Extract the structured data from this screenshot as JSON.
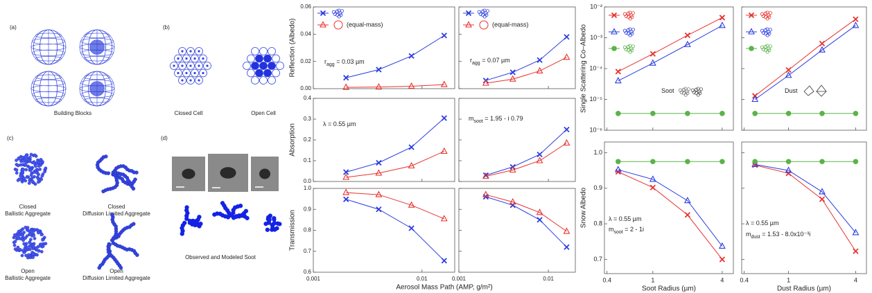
{
  "panels": {
    "a": {
      "label": "(a)",
      "caption": "Building Blocks"
    },
    "b": {
      "label": "(b)",
      "closed": "Closed Cell",
      "open": "Open Cell"
    },
    "c": {
      "label": "(c)",
      "aggregates": [
        [
          "Closed",
          "Ballistic Aggregate"
        ],
        [
          "Closed",
          "Diffusion Limited Aggregate"
        ],
        [
          "Open",
          "Ballistic Aggregate"
        ],
        [
          "Open",
          "Diffusion Limited Aggregate"
        ]
      ]
    },
    "d": {
      "label": "(d)",
      "caption": "Observed and Modeled Soot"
    }
  },
  "chart_data": [
    {
      "type": "line",
      "ylabel": "Reflection (Albedo)",
      "xlog": true,
      "xlim": [
        0.001,
        0.02
      ],
      "xticks": [
        0.001,
        0.01
      ],
      "ylim": [
        0,
        0.06
      ],
      "yticks": [
        {
          "value": 0,
          "label": "0.00"
        },
        0.02,
        0.04,
        0.06
      ],
      "tick_labels": {
        "x": false,
        "y": true
      },
      "legend": true,
      "x": [
        0.002,
        0.004,
        0.008,
        0.016
      ],
      "series": [
        {
          "color": "#2b3de0",
          "marker": "x",
          "values": [
            0.008,
            0.014,
            0.024,
            0.039
          ]
        },
        {
          "name": "(equal-mass)",
          "color": "#e8322e",
          "marker": "triangle",
          "values": [
            0.001,
            0.0012,
            0.0018,
            0.003
          ]
        }
      ],
      "annotations": [
        {
          "text": "r",
          "sub": "agg",
          "after": " = 0.03 µm"
        }
      ]
    },
    {
      "type": "line",
      "xlog": true,
      "xlim": [
        0.001,
        0.02
      ],
      "xticks": [
        0.001,
        0.01
      ],
      "ylim": [
        0,
        0.06
      ],
      "yticks": [
        0,
        0.02,
        0.04,
        0.06
      ],
      "tick_labels": {
        "x": false,
        "y": false
      },
      "legend": true,
      "x": [
        0.002,
        0.004,
        0.008,
        0.016
      ],
      "series": [
        {
          "color": "#2b3de0",
          "marker": "x",
          "values": [
            0.006,
            0.012,
            0.021,
            0.038
          ]
        },
        {
          "name": "(equal-mass)",
          "color": "#e8322e",
          "marker": "triangle",
          "values": [
            0.004,
            0.007,
            0.013,
            0.023
          ]
        }
      ],
      "annotations": [
        {
          "text": "r",
          "sub": "agg",
          "after": " = 0.07 µm"
        }
      ]
    },
    {
      "type": "line",
      "ylabel": "Absorption",
      "xlog": true,
      "xlim": [
        0.001,
        0.02
      ],
      "xticks": [
        0.001,
        0.01
      ],
      "ylim": [
        0,
        0.4
      ],
      "yticks": [
        {
          "value": 0,
          "label": "0.0"
        },
        0.1,
        0.2,
        0.3,
        0.4
      ],
      "tick_labels": {
        "x": false,
        "y": true
      },
      "x": [
        0.002,
        0.004,
        0.008,
        0.016
      ],
      "series": [
        {
          "color": "#2b3de0",
          "marker": "x",
          "values": [
            0.045,
            0.09,
            0.165,
            0.305
          ]
        },
        {
          "color": "#e8322e",
          "marker": "triangle",
          "values": [
            0.02,
            0.04,
            0.075,
            0.145
          ]
        }
      ],
      "annotations": [
        {
          "text": "λ = 0.55 µm"
        }
      ]
    },
    {
      "type": "line",
      "xlog": true,
      "xlim": [
        0.001,
        0.02
      ],
      "xticks": [
        0.001,
        0.01
      ],
      "ylim": [
        0,
        0.4
      ],
      "yticks": [
        0,
        0.1,
        0.2,
        0.3,
        0.4
      ],
      "tick_labels": {
        "x": false,
        "y": false
      },
      "x": [
        0.002,
        0.004,
        0.008,
        0.016
      ],
      "series": [
        {
          "color": "#2b3de0",
          "marker": "x",
          "values": [
            0.03,
            0.07,
            0.13,
            0.25
          ]
        },
        {
          "color": "#e8322e",
          "marker": "triangle",
          "values": [
            0.025,
            0.055,
            0.1,
            0.185
          ]
        }
      ],
      "annotations": [
        {
          "text": "m",
          "sub": "soot",
          "after": " = 1.95 - i 0.79"
        }
      ]
    },
    {
      "type": "line",
      "ylabel": "Transmission",
      "xlabel": "Aerosol Mass Path (AMP, g/m²)",
      "xlog": true,
      "xlim": [
        0.001,
        0.02
      ],
      "xticks": [
        0.001,
        0.01
      ],
      "ylim": [
        0.6,
        1.0
      ],
      "yticks": [
        0.6,
        0.7,
        0.8,
        0.9,
        {
          "value": 1,
          "label": "1.0"
        }
      ],
      "tick_labels": {
        "x": true,
        "y": true
      },
      "x": [
        0.002,
        0.004,
        0.008,
        0.016
      ],
      "series": [
        {
          "color": "#2b3de0",
          "marker": "x",
          "values": [
            0.948,
            0.9,
            0.81,
            0.655
          ]
        },
        {
          "color": "#e8322e",
          "marker": "triangle",
          "values": [
            0.98,
            0.97,
            0.92,
            0.855
          ]
        }
      ]
    },
    {
      "type": "line",
      "xlog": true,
      "xlim": [
        0.001,
        0.02
      ],
      "xticks": [
        0.001,
        0.01
      ],
      "ylim": [
        0.6,
        1.0
      ],
      "yticks": [
        0.6,
        0.7,
        0.8,
        0.9,
        1
      ],
      "tick_labels": {
        "x": true,
        "y": false
      },
      "x": [
        0.002,
        0.004,
        0.008,
        0.016
      ],
      "series": [
        {
          "color": "#2b3de0",
          "marker": "x",
          "values": [
            0.96,
            0.92,
            0.85,
            0.72
          ]
        },
        {
          "color": "#e8322e",
          "marker": "triangle",
          "values": [
            0.97,
            0.935,
            0.885,
            0.795
          ]
        }
      ]
    },
    {
      "type": "line",
      "ylabel": "Single Scattering Co–Albedo",
      "xlog": true,
      "ylog": true,
      "xlim": [
        0.38,
        5
      ],
      "xticks": [
        0.4,
        1,
        4
      ],
      "ylim": [
        1e-06,
        0.01
      ],
      "yticks": [
        {
          "value": 1e-06,
          "label": "10⁻⁶"
        },
        {
          "value": 1e-05,
          "label": "10⁻⁵"
        },
        {
          "value": 0.0001,
          "label": "10⁻⁴"
        },
        {
          "value": 0.001,
          "label": "10⁻³"
        },
        {
          "value": 0.01,
          "label": "10⁻²"
        }
      ],
      "tick_labels": {
        "x": false,
        "y": true
      },
      "legend": true,
      "x": [
        0.5,
        1,
        2,
        4
      ],
      "series": [
        {
          "color": "#e8322e",
          "marker": "x",
          "values": [
            8e-05,
            0.0003,
            0.0012,
            0.0045
          ]
        },
        {
          "color": "#2b3de0",
          "marker": "triangle",
          "values": [
            4e-05,
            0.00015,
            0.0006,
            0.0025
          ]
        },
        {
          "color": "#5bb34a",
          "marker": "circle",
          "values": [
            3.5e-06,
            3.5e-06,
            3.5e-06,
            3.5e-06
          ]
        }
      ],
      "annotations": [
        {
          "text": "Soot"
        }
      ]
    },
    {
      "type": "line",
      "xlog": true,
      "ylog": true,
      "xlim": [
        0.38,
        5
      ],
      "xticks": [
        0.4,
        1,
        4
      ],
      "ylim": [
        1e-06,
        0.01
      ],
      "yticks": [
        1e-06,
        1e-05,
        0.0001,
        0.001,
        0.01
      ],
      "tick_labels": {
        "x": false,
        "y": false
      },
      "legend": true,
      "x": [
        0.5,
        1,
        2,
        4
      ],
      "series": [
        {
          "color": "#e8322e",
          "marker": "x",
          "values": [
            1.3e-05,
            9e-05,
            0.00065,
            0.004
          ]
        },
        {
          "color": "#2b3de0",
          "marker": "triangle",
          "values": [
            1e-05,
            6e-05,
            0.0004,
            0.0025
          ]
        },
        {
          "color": "#5bb34a",
          "marker": "circle",
          "values": [
            3.5e-06,
            3.5e-06,
            3.5e-06,
            3.5e-06
          ]
        }
      ],
      "annotations": [
        {
          "text": "Dust"
        }
      ]
    },
    {
      "type": "line",
      "ylabel": "Snow Albedo",
      "xlabel": "Soot Radius (µm)",
      "xlog": true,
      "xlim": [
        0.38,
        5
      ],
      "xticks": [
        0.4,
        1,
        4
      ],
      "ylim": [
        0.66,
        1.03
      ],
      "yticks": [
        0.7,
        0.8,
        0.9,
        {
          "value": 1,
          "label": "1.0"
        }
      ],
      "tick_labels": {
        "x": true,
        "y": true
      },
      "x": [
        0.5,
        1,
        2,
        4
      ],
      "series": [
        {
          "color": "#e8322e",
          "marker": "x",
          "values": [
            0.946,
            0.902,
            0.825,
            0.7
          ]
        },
        {
          "color": "#2b3de0",
          "marker": "triangle",
          "values": [
            0.952,
            0.925,
            0.865,
            0.737
          ]
        },
        {
          "color": "#5bb34a",
          "marker": "circle",
          "values": [
            0.975,
            0.975,
            0.975,
            0.975
          ]
        }
      ],
      "annotations": [
        {
          "text": "λ = 0.55 µm"
        },
        {
          "text": "m",
          "sub": "soot",
          "after": " = 2 - 1i"
        }
      ]
    },
    {
      "type": "line",
      "xlabel": "Dust Radius (µm)",
      "xlog": true,
      "xlim": [
        0.38,
        5
      ],
      "xticks": [
        0.4,
        1,
        4
      ],
      "ylim": [
        0.66,
        1.03
      ],
      "yticks": [
        0.7,
        0.8,
        0.9,
        1
      ],
      "tick_labels": {
        "x": true,
        "y": false
      },
      "x": [
        0.5,
        1,
        2,
        4
      ],
      "series": [
        {
          "color": "#e8322e",
          "marker": "x",
          "values": [
            0.965,
            0.942,
            0.869,
            0.723
          ]
        },
        {
          "color": "#2b3de0",
          "marker": "triangle",
          "values": [
            0.967,
            0.95,
            0.89,
            0.775
          ]
        },
        {
          "color": "#5bb34a",
          "marker": "circle",
          "values": [
            0.975,
            0.975,
            0.975,
            0.975
          ]
        }
      ],
      "annotations": [
        {
          "text": "λ = 0.55 µm"
        },
        {
          "text": "m",
          "sub": "dust",
          "after": " = 1.53 - 8.0x10⁻³i"
        }
      ]
    }
  ]
}
